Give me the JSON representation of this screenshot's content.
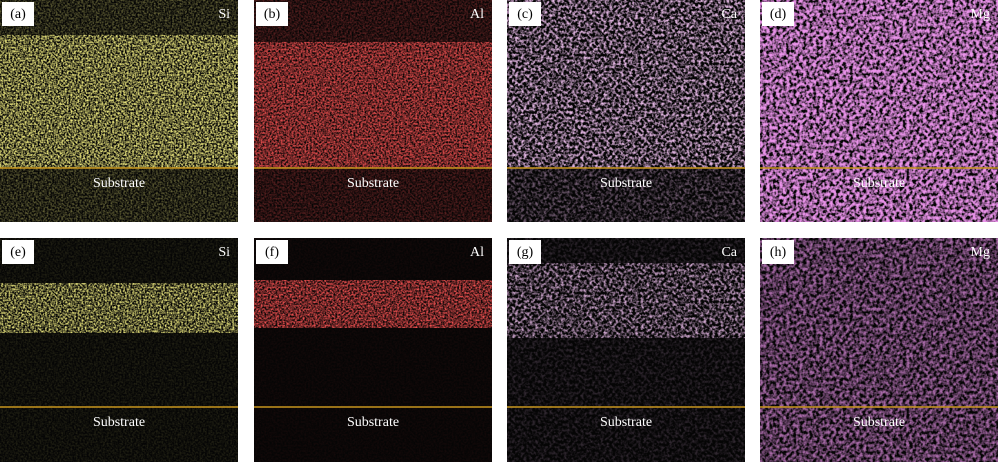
{
  "panels": [
    {
      "label": "(a)",
      "element": "Si",
      "region": "Substrate"
    },
    {
      "label": "(b)",
      "element": "Al",
      "region": "Substrate"
    },
    {
      "label": "(c)",
      "element": "Ca",
      "region": "Substrate"
    },
    {
      "label": "(d)",
      "element": "Mg",
      "region": "Substrate"
    },
    {
      "label": "(e)",
      "element": "Si",
      "region": "Substrate"
    },
    {
      "label": "(f)",
      "element": "Al",
      "region": "Substrate"
    },
    {
      "label": "(g)",
      "element": "Ca",
      "region": "Substrate"
    },
    {
      "label": "(h)",
      "element": "Mg",
      "region": "Substrate"
    }
  ]
}
